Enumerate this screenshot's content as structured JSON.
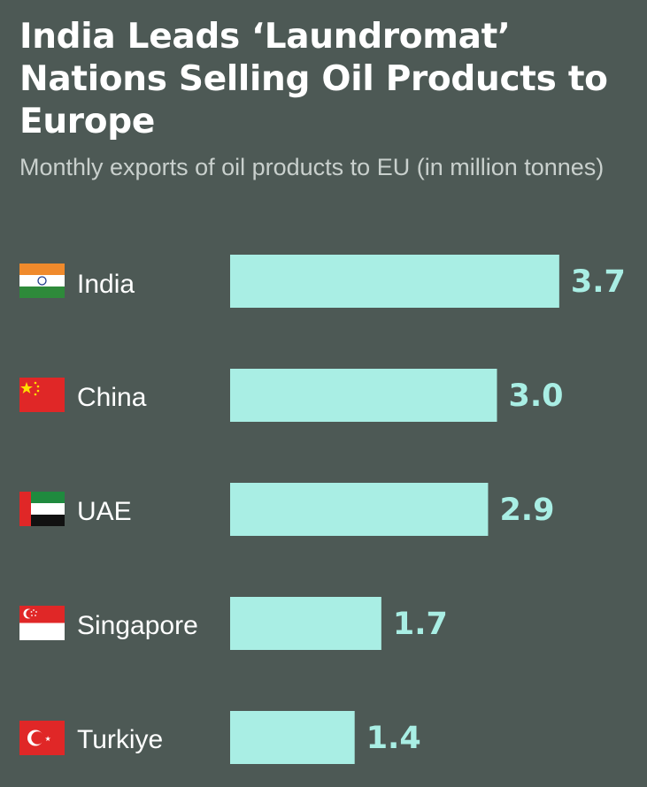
{
  "title": "India Leads ‘Laundromat’ Nations Selling Oil Products to Europe",
  "subtitle": "Monthly exports of oil products to EU (in million tonnes)",
  "colors": {
    "background": "#4d5955",
    "bar": "#a9eee4",
    "value_text": "#a9eee4"
  },
  "chart_data": {
    "type": "bar",
    "orientation": "horizontal",
    "title": "India Leads ‘Laundromat’ Nations Selling Oil Products to Europe",
    "subtitle": "Monthly exports of oil products to EU (in million tonnes)",
    "categories": [
      "India",
      "China",
      "UAE",
      "Singapore",
      "Turkiye"
    ],
    "values": [
      3.7,
      3.0,
      2.9,
      1.7,
      1.4
    ],
    "value_labels": [
      "3.7",
      "3.0",
      "2.9",
      "1.7",
      "1.4"
    ],
    "flags": [
      "india-flag-icon",
      "china-flag-icon",
      "uae-flag-icon",
      "singapore-flag-icon",
      "turkiye-flag-icon"
    ],
    "grid": false,
    "legend": "none"
  }
}
